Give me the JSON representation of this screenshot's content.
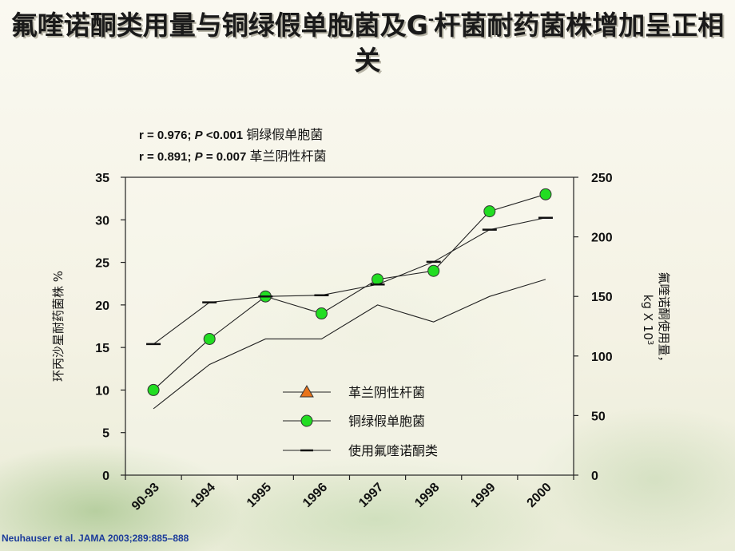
{
  "title_main": "氟喹诺酮类用量与铜绿假单胞菌及G",
  "title_sup": "-",
  "title_rest": "杆菌耐药菌株增加呈正相关",
  "stats": [
    {
      "prefix": "r = 0.976; ",
      "p": "P",
      "cmp": " <0.001 ",
      "label": "铜绿假单胞菌"
    },
    {
      "prefix": "r = 0.891; ",
      "p": "P",
      "cmp": " = 0.007 ",
      "label": "革兰阴性杆菌"
    }
  ],
  "citation": "Neuhauser et al. JAMA 2003;289:885–888",
  "colors": {
    "pseudomonas_fill": "#22dd22",
    "gram_negative_fill": "#e8731a",
    "line": "#222222"
  },
  "chart_data": {
    "type": "line",
    "categories": [
      "90-93",
      "1994",
      "1995",
      "1996",
      "1997",
      "1998",
      "1999",
      "2000"
    ],
    "ylabel_left": "环丙沙星耐药菌株 %",
    "ylabel_right_line1": "氟喹诺酮使用量，",
    "ylabel_right_line2": "kg X 10",
    "ylabel_right_sup": "3",
    "ylim_left": [
      0,
      35
    ],
    "yticks_left": [
      0,
      5,
      10,
      15,
      20,
      25,
      30,
      35
    ],
    "ylim_right": [
      0,
      250
    ],
    "yticks_right": [
      0,
      50,
      100,
      150,
      200,
      250
    ],
    "series": [
      {
        "name": "革兰阴性杆菌",
        "axis": "left",
        "marker": "triangle",
        "values": [
          7.8,
          13,
          16,
          16,
          20,
          18,
          21,
          23
        ]
      },
      {
        "name": "铜绿假单胞菌",
        "axis": "left",
        "marker": "circle",
        "values": [
          10,
          16,
          21,
          19,
          23,
          24,
          31,
          33
        ]
      },
      {
        "name": "使用氟喹诺酮类",
        "axis": "right",
        "marker": "dash",
        "values": [
          110,
          145,
          150,
          151,
          160,
          179,
          206,
          216
        ]
      }
    ],
    "legend_position": "bottom-center"
  }
}
